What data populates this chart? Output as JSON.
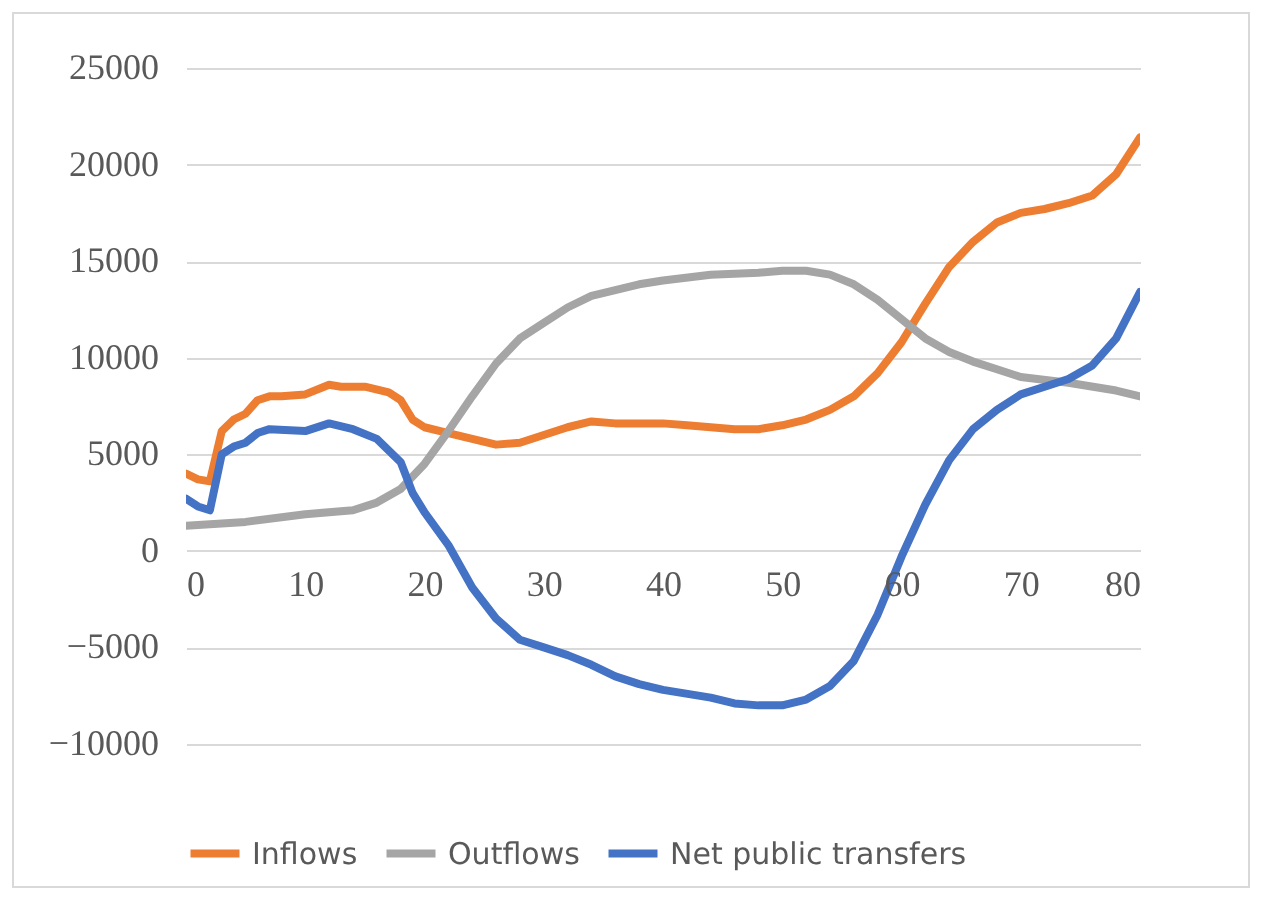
{
  "chart_data": {
    "type": "line",
    "legend": "bottom",
    "grid": "y",
    "line_style": "solid",
    "marker": "none",
    "xlim": [
      0,
      80
    ],
    "xticks": [
      0,
      10,
      20,
      30,
      40,
      50,
      60,
      70,
      80
    ],
    "ylim": [
      -10000,
      25000
    ],
    "yticks": [
      -10000,
      -5000,
      0,
      5000,
      10000,
      15000,
      20000,
      25000
    ],
    "series": [
      {
        "name": "Inflows",
        "color": "#ed7d31",
        "x": [
          0,
          1,
          2,
          3,
          4,
          5,
          6,
          7,
          8,
          10,
          12,
          13,
          15,
          17,
          18,
          19,
          20,
          22,
          24,
          26,
          28,
          30,
          32,
          34,
          36,
          40,
          42,
          44,
          46,
          48,
          50,
          52,
          54,
          56,
          58,
          60,
          62,
          64,
          66,
          68,
          70,
          72,
          74,
          76,
          78,
          80
        ],
        "values": [
          4000,
          3700,
          3600,
          6200,
          6800,
          7100,
          7800,
          8000,
          8000,
          8100,
          8600,
          8500,
          8500,
          8200,
          7800,
          6800,
          6400,
          6100,
          5800,
          5500,
          5600,
          6000,
          6400,
          6700,
          6600,
          6600,
          6500,
          6400,
          6300,
          6300,
          6500,
          6800,
          7300,
          8000,
          9200,
          10800,
          12800,
          14700,
          16000,
          17000,
          17500,
          17700,
          18000,
          18400,
          19500,
          21400
        ]
      },
      {
        "name": "Outflows",
        "color": "#a5a5a5",
        "x": [
          0,
          5,
          10,
          14,
          16,
          18,
          20,
          22,
          24,
          26,
          28,
          30,
          32,
          34,
          36,
          38,
          40,
          44,
          48,
          50,
          52,
          54,
          56,
          58,
          60,
          62,
          64,
          66,
          68,
          70,
          74,
          78,
          80
        ],
        "values": [
          1300,
          1500,
          1900,
          2100,
          2500,
          3200,
          4500,
          6200,
          8000,
          9700,
          11000,
          11800,
          12600,
          13200,
          13500,
          13800,
          14000,
          14300,
          14400,
          14500,
          14500,
          14300,
          13800,
          13000,
          12000,
          11000,
          10300,
          9800,
          9400,
          9000,
          8700,
          8300,
          8000
        ]
      },
      {
        "name": "Net public transfers",
        "color": "#4472c4",
        "x": [
          0,
          1,
          2,
          3,
          4,
          5,
          6,
          7,
          10,
          12,
          14,
          16,
          18,
          19,
          20,
          22,
          24,
          26,
          28,
          30,
          32,
          34,
          36,
          38,
          40,
          44,
          46,
          48,
          50,
          52,
          54,
          56,
          58,
          60,
          62,
          64,
          66,
          68,
          70,
          72,
          74,
          76,
          78,
          80
        ],
        "values": [
          2700,
          2300,
          2100,
          5000,
          5400,
          5600,
          6100,
          6300,
          6200,
          6600,
          6300,
          5800,
          4600,
          3000,
          2000,
          300,
          -1900,
          -3500,
          -4600,
          -5000,
          -5400,
          -5900,
          -6500,
          -6900,
          -7200,
          -7600,
          -7900,
          -8000,
          -8000,
          -7700,
          -7000,
          -5700,
          -3300,
          -300,
          2400,
          4700,
          6300,
          7300,
          8100,
          8500,
          8900,
          9600,
          11000,
          13400
        ]
      }
    ]
  }
}
